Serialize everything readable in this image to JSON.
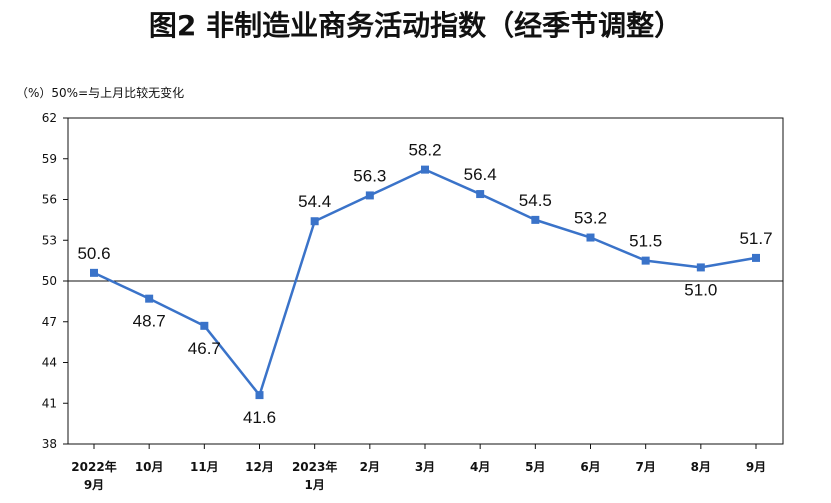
{
  "chart_data": {
    "type": "line",
    "title": "图2  非制造业商务活动指数（经季节调整）",
    "note": "（%）50%=与上月比较无变化",
    "categories": [
      [
        "2022年",
        "9月"
      ],
      [
        "10月"
      ],
      [
        "11月"
      ],
      [
        "12月"
      ],
      [
        "2023年",
        "1月"
      ],
      [
        "2月"
      ],
      [
        "3月"
      ],
      [
        "4月"
      ],
      [
        "5月"
      ],
      [
        "6月"
      ],
      [
        "7月"
      ],
      [
        "8月"
      ],
      [
        "9月"
      ]
    ],
    "series": [
      {
        "values": [
          50.6,
          48.7,
          46.7,
          41.6,
          54.4,
          56.3,
          58.2,
          56.4,
          54.5,
          53.2,
          51.5,
          51.0,
          51.7
        ]
      }
    ],
    "data_labels": [
      "50.6",
      "48.7",
      "46.7",
      "41.6",
      "54.4",
      "56.3",
      "58.2",
      "56.4",
      "54.5",
      "53.2",
      "51.5",
      "51.0",
      "51.7"
    ],
    "yticks": [
      "62",
      "59",
      "56",
      "53",
      "50",
      "47",
      "44",
      "41",
      "38"
    ],
    "ylim": [
      38,
      62
    ],
    "baseline": 50,
    "xlabel": "",
    "ylabel": "",
    "grid": false,
    "legend": "none",
    "colors": {
      "line": "#3a73c9",
      "marker": "#3a73c9",
      "axis": "#111111"
    }
  }
}
